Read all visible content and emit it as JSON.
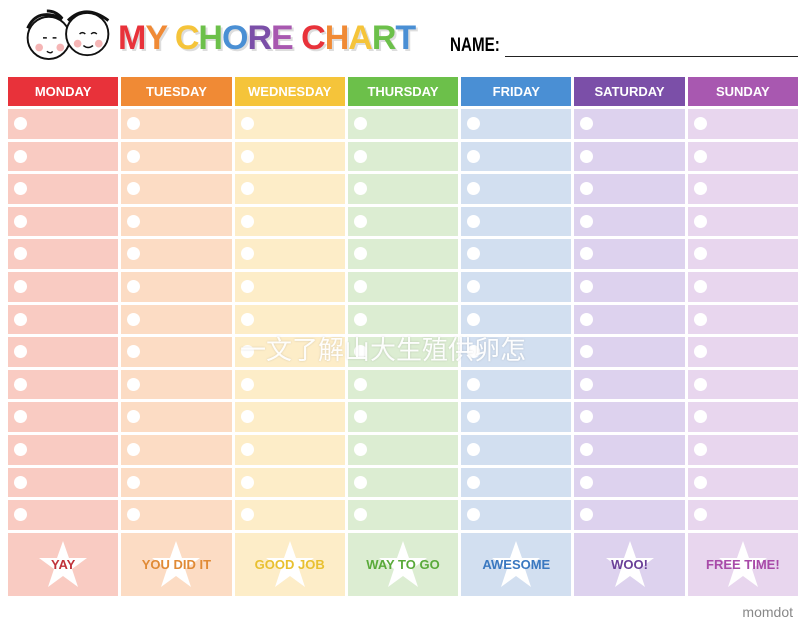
{
  "title": {
    "letters": [
      {
        "ch": "M",
        "color": "#e8323a"
      },
      {
        "ch": "Y",
        "color": "#f08a35"
      },
      {
        "ch": " ",
        "color": "#000"
      },
      {
        "ch": "C",
        "color": "#f5c43a"
      },
      {
        "ch": "H",
        "color": "#6cc04a"
      },
      {
        "ch": "O",
        "color": "#4a8fd4"
      },
      {
        "ch": "R",
        "color": "#7b4fa8"
      },
      {
        "ch": "E",
        "color": "#a858b0"
      },
      {
        "ch": " ",
        "color": "#000"
      },
      {
        "ch": "C",
        "color": "#e8323a"
      },
      {
        "ch": "H",
        "color": "#f08a35"
      },
      {
        "ch": "A",
        "color": "#f5c43a"
      },
      {
        "ch": "R",
        "color": "#6cc04a"
      },
      {
        "ch": "T",
        "color": "#4a8fd4"
      }
    ]
  },
  "name_label": "NAME:",
  "rows_per_day": 13,
  "days": [
    {
      "label": "MONDAY",
      "color": "#e8323a",
      "light": "#f9cbc2",
      "footer": "YAY",
      "footer_color": "#c0323a"
    },
    {
      "label": "TUESDAY",
      "color": "#f08a35",
      "light": "#fcdcc4",
      "footer": "YOU DID IT",
      "footer_color": "#e08a35"
    },
    {
      "label": "WEDNESDAY",
      "color": "#f5c43a",
      "light": "#fdedc8",
      "footer": "GOOD JOB",
      "footer_color": "#e8c030"
    },
    {
      "label": "THURSDAY",
      "color": "#6cc04a",
      "light": "#dcedd2",
      "footer": "WAY TO GO",
      "footer_color": "#5aaa3a"
    },
    {
      "label": "FRIDAY",
      "color": "#4a8fd4",
      "light": "#d2dff0",
      "footer": "AWESOME",
      "footer_color": "#3a78c0"
    },
    {
      "label": "SATURDAY",
      "color": "#7b4fa8",
      "light": "#ddd2ee",
      "footer": "WOO!",
      "footer_color": "#6a4098"
    },
    {
      "label": "SUNDAY",
      "color": "#a858b0",
      "light": "#e8d6ee",
      "footer": "FREE TIME!",
      "footer_color": "#a84aa8"
    }
  ],
  "watermark": "一文了解山大生殖供卵怎",
  "brand": "momdot"
}
